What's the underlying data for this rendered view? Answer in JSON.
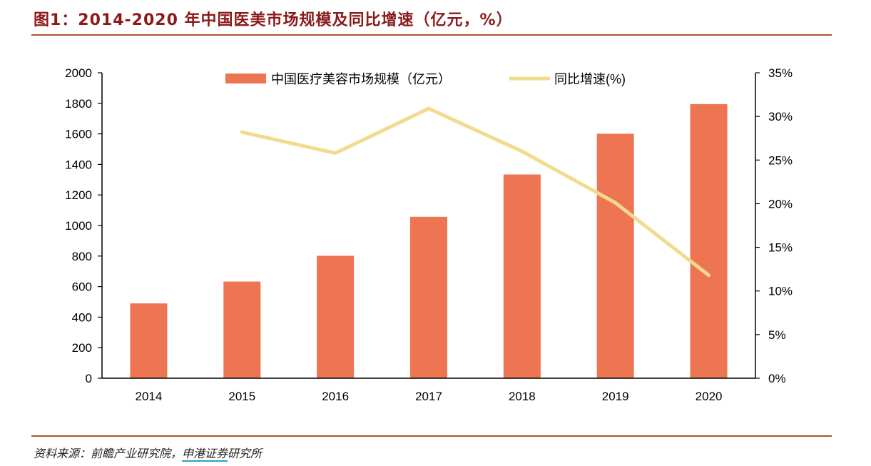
{
  "figure": {
    "title": "图1：2014-2020 年中国医美市场规模及同比增速（亿元，%）",
    "source_prefix": "资料来源：前瞻产业研究院，",
    "source_highlight": "申港证券",
    "source_suffix": "研究所"
  },
  "colors": {
    "title": "#8B1A1A",
    "rule": "#B05030",
    "bar": "#EE7552",
    "line": "#F2DB8E",
    "axis": "#000000"
  },
  "chart_data": {
    "type": "bar",
    "categories": [
      "2014",
      "2015",
      "2016",
      "2017",
      "2018",
      "2019",
      "2020"
    ],
    "series": [
      {
        "name": "中国医疗美容市场规模（亿元）",
        "type": "bar",
        "axis": "left",
        "values": [
          490,
          633,
          802,
          1057,
          1334,
          1601,
          1795
        ]
      },
      {
        "name": "同比增速(%)",
        "type": "line",
        "axis": "right",
        "values": [
          null,
          28.2,
          25.8,
          30.9,
          26.0,
          20.1,
          11.8
        ]
      }
    ],
    "ylim": [
      0,
      2000
    ],
    "y2lim": [
      0,
      35
    ],
    "yticks": [
      "0",
      "200",
      "400",
      "600",
      "800",
      "1000",
      "1200",
      "1400",
      "1600",
      "1800",
      "2000"
    ],
    "y2ticks": [
      "0%",
      "5%",
      "10%",
      "15%",
      "20%",
      "25%",
      "30%",
      "35%"
    ],
    "legend_position": "top-center",
    "grid": false
  }
}
